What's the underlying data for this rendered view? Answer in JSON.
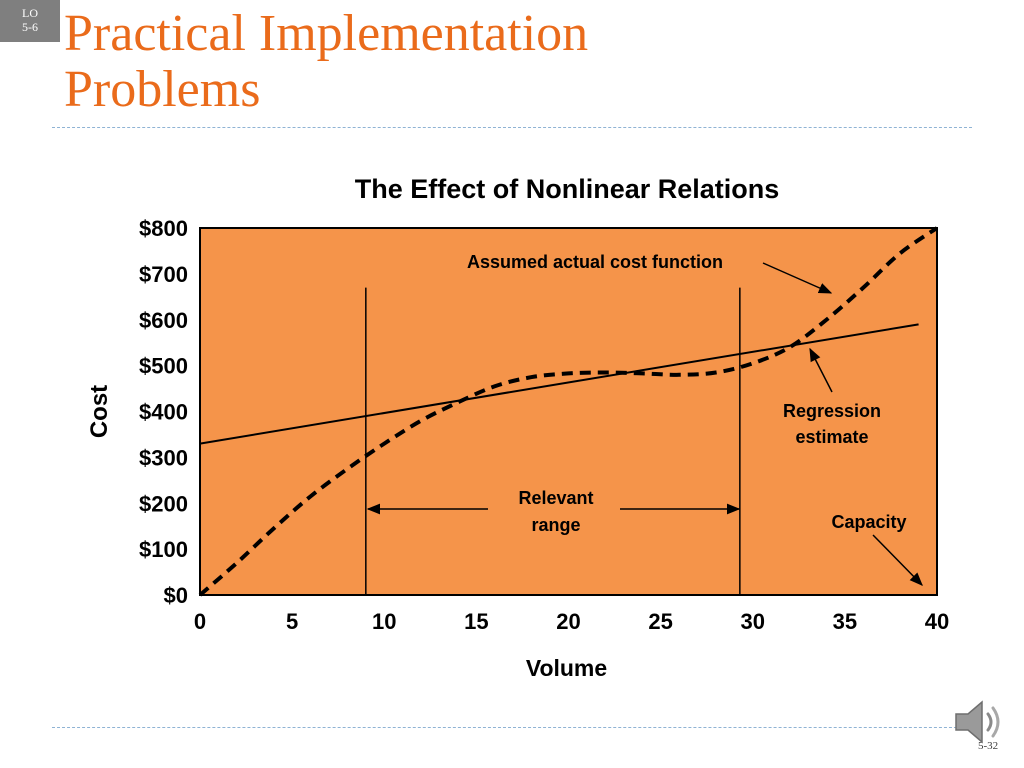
{
  "slide": {
    "lo_badge": [
      "LO",
      "5-6"
    ],
    "title_lines": [
      "Practical Implementation",
      "Problems"
    ],
    "page_number": "5-32"
  },
  "colors": {
    "title": "#ea6b1b",
    "plot_background": "#f5944a",
    "divider": "#8fb3d4",
    "badge": "#7f7f7f"
  },
  "chart_data": {
    "type": "line",
    "title": "The Effect of Nonlinear Relations",
    "xlabel": "Volume",
    "ylabel": "Cost",
    "xlim": [
      0,
      40
    ],
    "ylim": [
      0,
      800
    ],
    "x_ticks": [
      "0",
      "5",
      "10",
      "15",
      "20",
      "25",
      "30",
      "35",
      "40"
    ],
    "y_ticks": [
      "$0",
      "$100",
      "$200",
      "$300",
      "$400",
      "$500",
      "$600",
      "$700",
      "$800"
    ],
    "grid": false,
    "series": [
      {
        "name": "Assumed actual cost function",
        "style": "dashed",
        "x": [
          0,
          2,
          4,
          6,
          8,
          10,
          12,
          14,
          16,
          18,
          20,
          22,
          24,
          26,
          28,
          30,
          32,
          34,
          36,
          38,
          40
        ],
        "y": [
          0,
          70,
          145,
          215,
          275,
          330,
          380,
          420,
          455,
          475,
          483,
          485,
          483,
          480,
          485,
          505,
          540,
          600,
          670,
          745,
          800
        ]
      },
      {
        "name": "Regression estimate",
        "style": "solid",
        "x": [
          0,
          39
        ],
        "y": [
          330,
          590
        ]
      }
    ],
    "vertical_lines": [
      {
        "x": 9,
        "y_top": 670
      },
      {
        "x": 29.3,
        "y_top": 670
      }
    ],
    "annotations": {
      "cost_function_label": "Assumed actual cost function",
      "regression_label": [
        "Regression",
        "estimate"
      ],
      "relevant_range_label": [
        "Relevant",
        "range"
      ],
      "capacity_label": "Capacity"
    }
  }
}
